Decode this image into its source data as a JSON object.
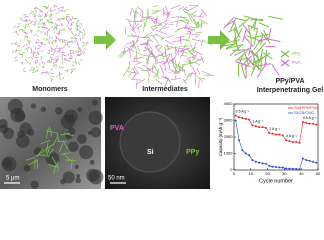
{
  "labels": {
    "monomers": "Monomers",
    "intermediates": "Intermediates",
    "gel_line1": "PPy/PVA",
    "gel_line2": "Interpenetrating Gel"
  },
  "legend": {
    "ppy": "PPy",
    "pva": "PVA"
  },
  "images": {
    "sem_scale": "5 μm",
    "tem_scale": "50 nm",
    "tem_pva": "PVA",
    "tem_si": "Si",
    "tem_ppy": "PPy"
  },
  "chart_data": {
    "type": "line",
    "x_label": "Cycle number",
    "y_label": "Capacity (mAh g⁻¹)",
    "x": [
      1,
      3,
      5,
      7,
      9,
      11,
      13,
      15,
      17,
      19,
      21,
      23,
      25,
      27,
      29,
      31,
      33,
      35,
      37,
      39,
      41,
      43,
      45,
      47,
      49
    ],
    "series": [
      {
        "name": "Si@PPy/PVA",
        "color": "#e8262e",
        "values": [
          3300,
          3200,
          3150,
          3100,
          3050,
          2700,
          2650,
          2600,
          2600,
          2550,
          2250,
          2200,
          2150,
          2150,
          2100,
          1800,
          1750,
          1700,
          1700,
          1650,
          2900,
          2850,
          2800,
          2800,
          2750
        ]
      },
      {
        "name": "Si/CB/CMC",
        "color": "#2b4fc9",
        "values": [
          3000,
          1800,
          1200,
          1000,
          900,
          600,
          500,
          450,
          400,
          380,
          250,
          200,
          180,
          160,
          150,
          90,
          80,
          70,
          60,
          50,
          700,
          600,
          550,
          500,
          450
        ]
      }
    ],
    "annotations": [
      "0.5 A g⁻¹",
      "1 A g⁻¹",
      "2 A g⁻¹",
      "4 A g⁻¹",
      "0.5 A g⁻¹"
    ],
    "xlim": [
      0,
      50
    ],
    "xticks": [
      0,
      10,
      20,
      30,
      40,
      50
    ],
    "ylim": [
      0,
      4000
    ],
    "yticks": [
      0,
      1000,
      2000,
      3000,
      4000
    ],
    "legend_position": "upper right"
  }
}
